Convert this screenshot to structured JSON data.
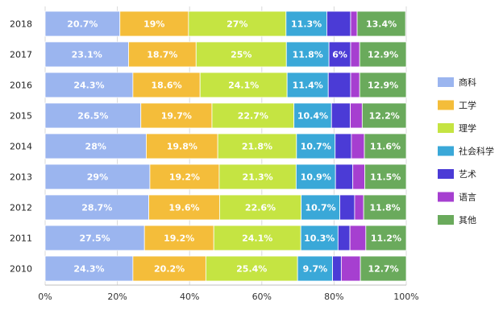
{
  "chart_data": {
    "type": "bar",
    "orientation": "horizontal",
    "stacked": true,
    "categories": [
      "2018",
      "2017",
      "2016",
      "2015",
      "2014",
      "2013",
      "2012",
      "2011",
      "2010"
    ],
    "series": [
      {
        "name": "商科",
        "color": "#9bb5ef",
        "values": [
          20.7,
          23.1,
          24.3,
          26.5,
          28,
          29,
          28.7,
          27.5,
          24.3
        ],
        "labels": [
          "20.7%",
          "23.1%",
          "24.3%",
          "26.5%",
          "28%",
          "29%",
          "28.7%",
          "27.5%",
          "24.3%"
        ]
      },
      {
        "name": "工学",
        "color": "#f4bd3a",
        "values": [
          19,
          18.7,
          18.6,
          19.7,
          19.8,
          19.2,
          19.6,
          19.2,
          20.2
        ],
        "labels": [
          "19%",
          "18.7%",
          "18.6%",
          "19.7%",
          "19.8%",
          "19.2%",
          "19.6%",
          "19.2%",
          "20.2%"
        ]
      },
      {
        "name": "理学",
        "color": "#c5e442",
        "values": [
          27,
          25,
          24.1,
          22.7,
          21.8,
          21.3,
          22.6,
          24.1,
          25.4
        ],
        "labels": [
          "27%",
          "25%",
          "24.1%",
          "22.7%",
          "21.8%",
          "21.3%",
          "22.6%",
          "24.1%",
          "25.4%"
        ]
      },
      {
        "name": "社会科学",
        "color": "#3aa8d8",
        "values": [
          11.3,
          11.8,
          11.4,
          10.4,
          10.7,
          10.9,
          10.7,
          10.3,
          9.7
        ],
        "labels": [
          "11.3%",
          "11.8%",
          "11.4%",
          "10.4%",
          "10.7%",
          "10.9%",
          "10.7%",
          "10.3%",
          "9.7%"
        ]
      },
      {
        "name": "艺术",
        "color": "#4b3bd6",
        "values": [
          6.6,
          6,
          6.2,
          5.2,
          4.5,
          4.8,
          4.1,
          3.3,
          2.4
        ],
        "labels": [
          "",
          "6%",
          "",
          "",
          "",
          "",
          "",
          "",
          ""
        ]
      },
      {
        "name": "语言",
        "color": "#a63fd0",
        "values": [
          1.8,
          2.5,
          2.5,
          3.3,
          3.6,
          3.3,
          2.5,
          4.4,
          5.3
        ],
        "labels": [
          "",
          "",
          "",
          "",
          "",
          "",
          "",
          "",
          ""
        ]
      },
      {
        "name": "其他",
        "color": "#6aaa5c",
        "values": [
          13.4,
          12.9,
          12.9,
          12.2,
          11.6,
          11.5,
          11.8,
          11.2,
          12.7
        ],
        "labels": [
          "13.4%",
          "12.9%",
          "12.9%",
          "12.2%",
          "11.6%",
          "11.5%",
          "11.8%",
          "11.2%",
          "12.7%"
        ]
      }
    ],
    "xlim": [
      0,
      100
    ],
    "xticks": [
      "0%",
      "20%",
      "40%",
      "60%",
      "80%",
      "100%"
    ],
    "title": "",
    "xlabel": "",
    "ylabel": "",
    "grid": "vertical",
    "legend_position": "right"
  }
}
